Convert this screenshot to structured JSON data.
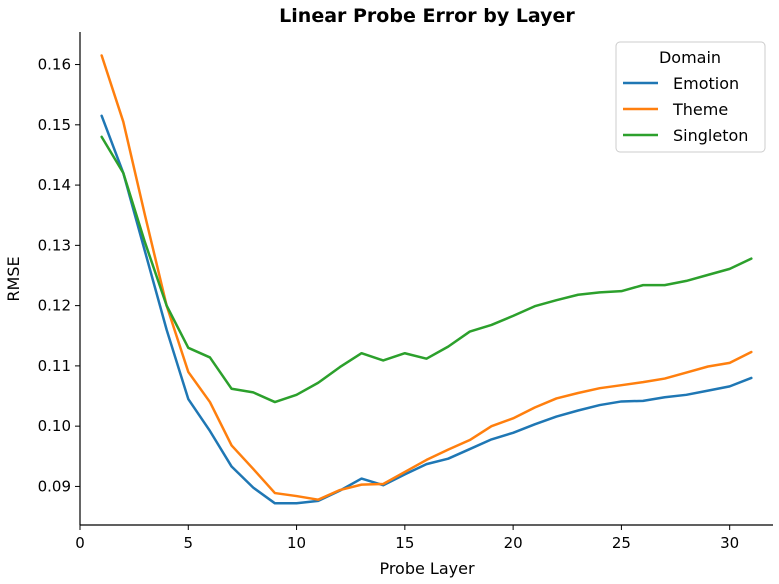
{
  "chart_data": {
    "type": "line",
    "title": "Linear Probe Error by Layer",
    "xlabel": "Probe Layer",
    "ylabel": "RMSE",
    "xlim": [
      0,
      32
    ],
    "ylim": [
      0.0836,
      0.1654
    ],
    "xticks": [
      0,
      5,
      10,
      15,
      20,
      25,
      30
    ],
    "yticks": [
      0.09,
      0.1,
      0.11,
      0.12,
      0.13,
      0.14,
      0.15,
      0.16
    ],
    "ytick_labels": [
      "0.09",
      "0.10",
      "0.11",
      "0.12",
      "0.13",
      "0.14",
      "0.15",
      "0.16"
    ],
    "grid": false,
    "legend": {
      "title": "Domain",
      "position": "top-right"
    },
    "x": [
      1,
      2,
      3,
      4,
      5,
      6,
      7,
      8,
      9,
      10,
      11,
      12,
      13,
      14,
      15,
      16,
      17,
      18,
      19,
      20,
      21,
      22,
      23,
      24,
      25,
      26,
      27,
      28,
      29,
      30,
      31
    ],
    "series": [
      {
        "name": "Emotion",
        "color": "#1f77b4",
        "values": [
          0.1515,
          0.142,
          0.129,
          0.116,
          0.1045,
          0.0992,
          0.0933,
          0.0898,
          0.0872,
          0.0872,
          0.0876,
          0.0893,
          0.0913,
          0.0902,
          0.092,
          0.0937,
          0.0946,
          0.0962,
          0.0978,
          0.0989,
          0.1003,
          0.1016,
          0.1026,
          0.1035,
          0.1041,
          0.1042,
          0.1048,
          0.1052,
          0.1059,
          0.1066,
          0.108
        ]
      },
      {
        "name": "Theme",
        "color": "#ff7f0e",
        "values": [
          0.1615,
          0.1505,
          0.135,
          0.12,
          0.109,
          0.104,
          0.0968,
          0.0929,
          0.0889,
          0.0884,
          0.0878,
          0.0894,
          0.0903,
          0.0904,
          0.0924,
          0.0944,
          0.0961,
          0.0977,
          0.1,
          0.1013,
          0.1031,
          0.1046,
          0.1055,
          0.1063,
          0.1068,
          0.1073,
          0.1079,
          0.1089,
          0.1099,
          0.1105,
          0.1123
        ]
      },
      {
        "name": "Singleton",
        "color": "#2ca02c",
        "values": [
          0.148,
          0.142,
          0.1305,
          0.12,
          0.113,
          0.1114,
          0.1062,
          0.1056,
          0.104,
          0.1052,
          0.1072,
          0.1098,
          0.1121,
          0.1109,
          0.1121,
          0.1112,
          0.1132,
          0.1157,
          0.1168,
          0.1183,
          0.1199,
          0.1209,
          0.1218,
          0.1222,
          0.1224,
          0.1234,
          0.1234,
          0.1241,
          0.1251,
          0.1261,
          0.1278
        ]
      }
    ]
  }
}
